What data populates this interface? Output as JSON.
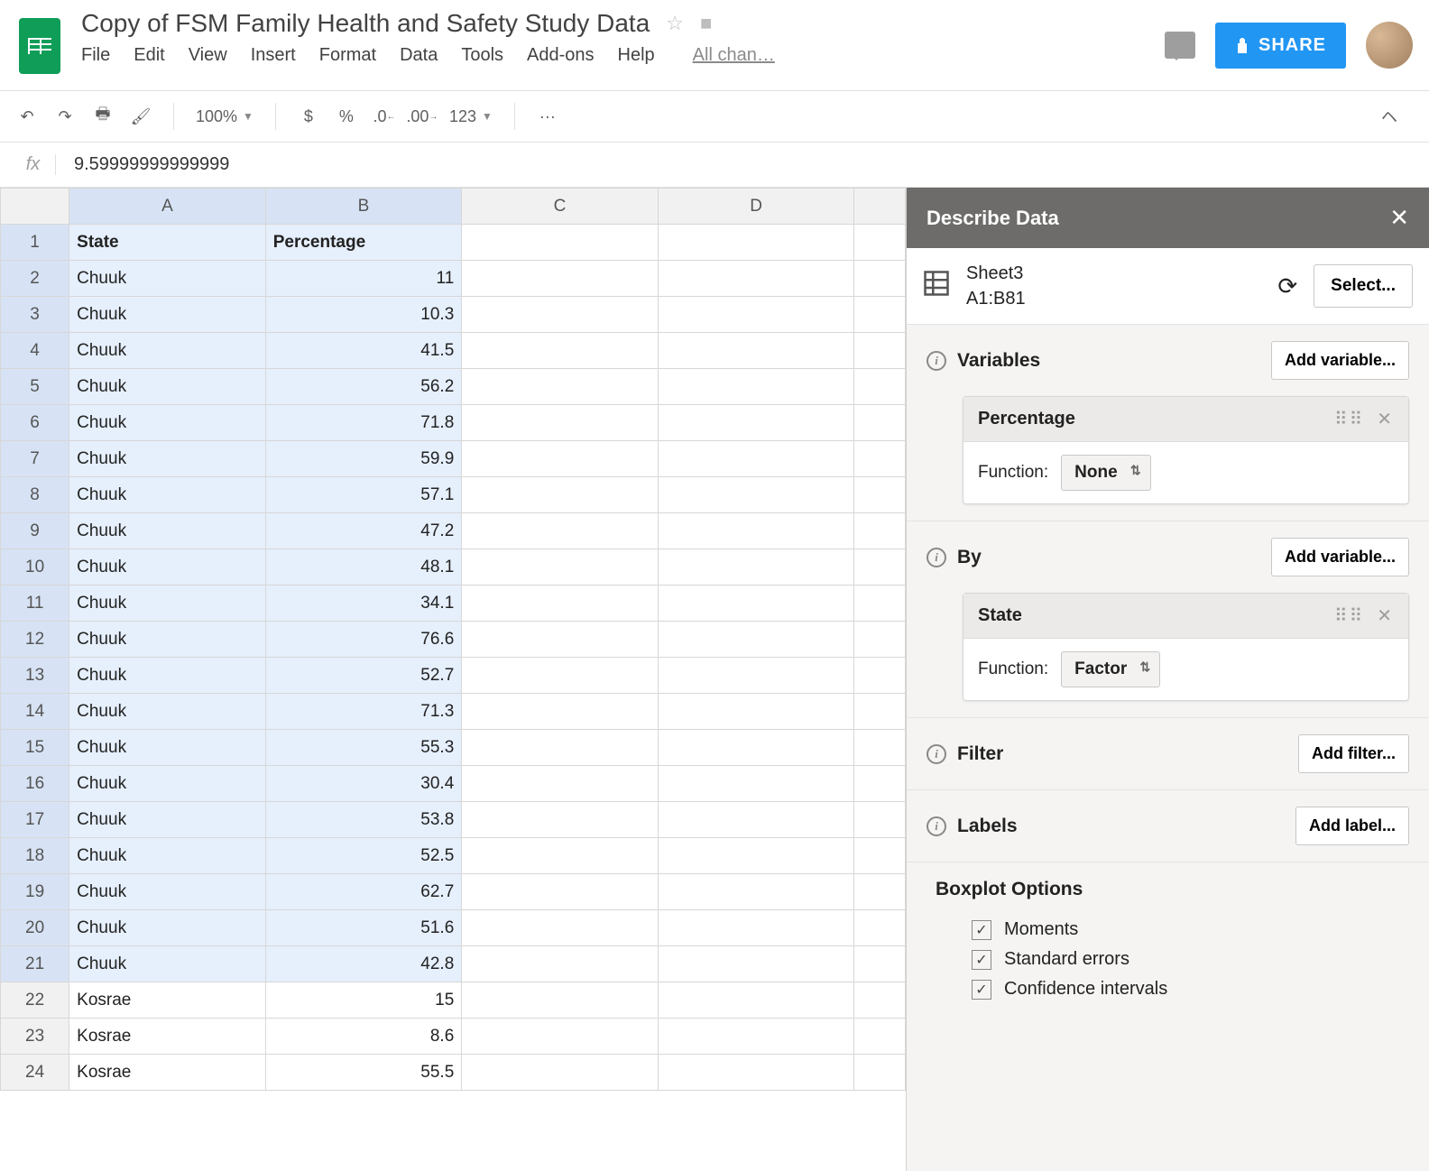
{
  "doc_title": "Copy of FSM Family Health and Safety Study Data",
  "menu": {
    "file": "File",
    "edit": "Edit",
    "view": "View",
    "insert": "Insert",
    "format": "Format",
    "data": "Data",
    "tools": "Tools",
    "addons": "Add-ons",
    "help": "Help",
    "allchanges": "All chan…"
  },
  "toolbar": {
    "zoom": "100%",
    "dollar": "$",
    "percent": "%",
    "dec0": ".0",
    "dec00": ".00",
    "num123": "123",
    "more": "···"
  },
  "share_label": "SHARE",
  "formula": {
    "fx": "fx",
    "value": "9.59999999999999"
  },
  "columns": [
    "A",
    "B",
    "C",
    "D",
    ""
  ],
  "headers": {
    "A": "State",
    "B": "Percentage"
  },
  "rows": [
    {
      "n": 1,
      "a": "State",
      "b": "Percentage",
      "hdr": true
    },
    {
      "n": 2,
      "a": "Chuuk",
      "b": "11"
    },
    {
      "n": 3,
      "a": "Chuuk",
      "b": "10.3"
    },
    {
      "n": 4,
      "a": "Chuuk",
      "b": "41.5"
    },
    {
      "n": 5,
      "a": "Chuuk",
      "b": "56.2"
    },
    {
      "n": 6,
      "a": "Chuuk",
      "b": "71.8"
    },
    {
      "n": 7,
      "a": "Chuuk",
      "b": "59.9"
    },
    {
      "n": 8,
      "a": "Chuuk",
      "b": "57.1"
    },
    {
      "n": 9,
      "a": "Chuuk",
      "b": "47.2"
    },
    {
      "n": 10,
      "a": "Chuuk",
      "b": "48.1"
    },
    {
      "n": 11,
      "a": "Chuuk",
      "b": "34.1"
    },
    {
      "n": 12,
      "a": "Chuuk",
      "b": "76.6"
    },
    {
      "n": 13,
      "a": "Chuuk",
      "b": "52.7"
    },
    {
      "n": 14,
      "a": "Chuuk",
      "b": "71.3"
    },
    {
      "n": 15,
      "a": "Chuuk",
      "b": "55.3"
    },
    {
      "n": 16,
      "a": "Chuuk",
      "b": "30.4"
    },
    {
      "n": 17,
      "a": "Chuuk",
      "b": "53.8"
    },
    {
      "n": 18,
      "a": "Chuuk",
      "b": "52.5"
    },
    {
      "n": 19,
      "a": "Chuuk",
      "b": "62.7"
    },
    {
      "n": 20,
      "a": "Chuuk",
      "b": "51.6"
    },
    {
      "n": 21,
      "a": "Chuuk",
      "b": "42.8"
    },
    {
      "n": 22,
      "a": "Kosrae",
      "b": "15"
    },
    {
      "n": 23,
      "a": "Kosrae",
      "b": "8.6"
    },
    {
      "n": 24,
      "a": "Kosrae",
      "b": "55.5"
    }
  ],
  "panel": {
    "title": "Describe Data",
    "source_sheet": "Sheet3",
    "source_range": "A1:B81",
    "select_btn": "Select...",
    "variables_title": "Variables",
    "add_variable": "Add variable...",
    "var1_name": "Percentage",
    "function_label": "Function:",
    "var1_func": "None",
    "by_title": "By",
    "var2_name": "State",
    "var2_func": "Factor",
    "filter_title": "Filter",
    "add_filter": "Add filter...",
    "labels_title": "Labels",
    "add_label": "Add label...",
    "boxplot_title": "Boxplot Options",
    "opt1": "Moments",
    "opt2": "Standard errors",
    "opt3": "Confidence intervals"
  }
}
